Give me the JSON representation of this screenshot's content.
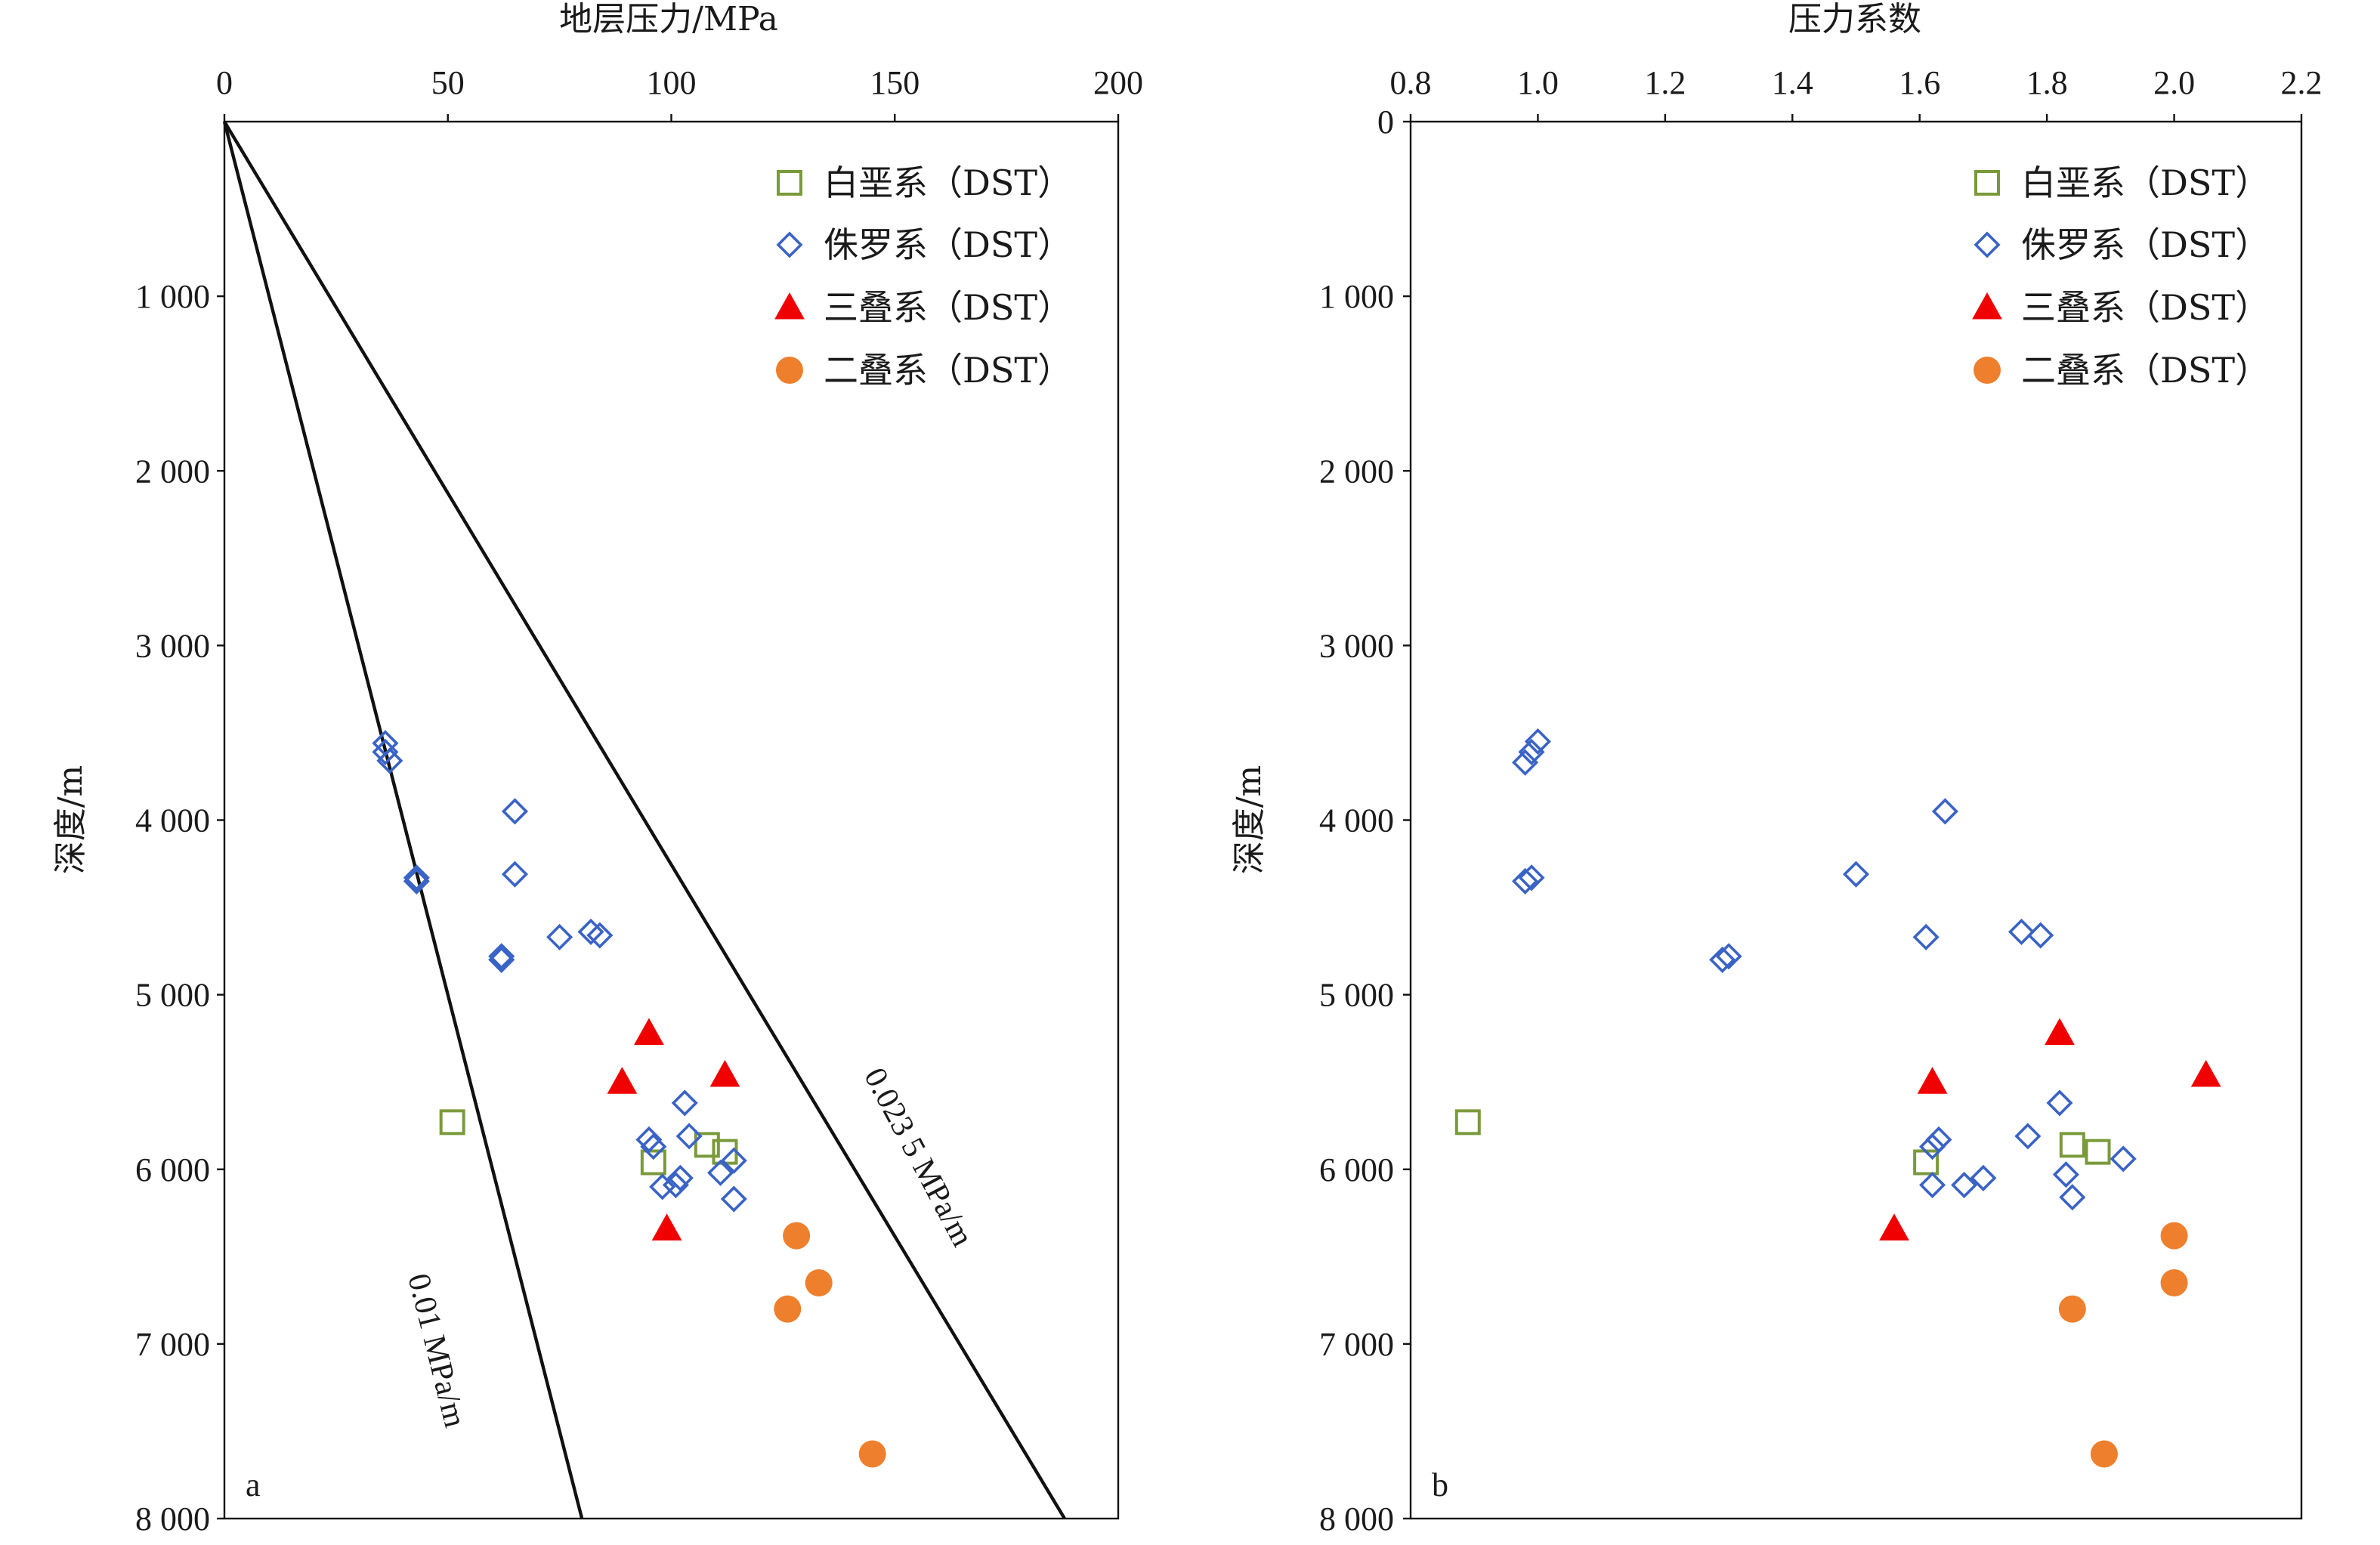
{
  "colors": {
    "cretaceous": "#7A9A3A",
    "jurassic": "#3A63C6",
    "triassic": "#F00000",
    "permian": "#EE7F2C",
    "axis": "#111111"
  },
  "chart_data": [
    {
      "type": "scatter",
      "panel_label": "a",
      "title": "地层压力/MPa",
      "xlabel": "地层压力/MPa",
      "ylabel": "深度/m",
      "xlim": [
        0,
        200
      ],
      "ylim": [
        0,
        8000
      ],
      "x_axis_position": "top",
      "y_inverted": true,
      "grid": false,
      "legend_position": "top-right",
      "x_ticks": [
        0,
        50,
        100,
        150,
        200
      ],
      "x_tick_labels": [
        "0",
        "50",
        "100",
        "150",
        "200"
      ],
      "y_ticks": [
        1000,
        2000,
        3000,
        4000,
        5000,
        6000,
        7000,
        8000
      ],
      "y_tick_labels": [
        "1 000",
        "2 000",
        "3 000",
        "4 000",
        "5 000",
        "6 000",
        "7 000",
        "8 000"
      ],
      "reference_lines": [
        {
          "label": "0.01 MPa/m",
          "gradient": 0.01,
          "x": [
            0,
            80
          ],
          "y": [
            0,
            8000
          ]
        },
        {
          "label": "0.023 5 MPa/m",
          "gradient": 0.0235,
          "x": [
            0,
            188
          ],
          "y": [
            0,
            8000
          ]
        }
      ],
      "series": [
        {
          "name": "白垩系（DST）",
          "marker": "square",
          "color": "#7A9A3A",
          "points": [
            [
              51,
              5730
            ],
            [
              96,
              5960
            ],
            [
              108,
              5860
            ],
            [
              112,
              5900
            ]
          ]
        },
        {
          "name": "侏罗系（DST）",
          "marker": "diamond",
          "color": "#3A63C6",
          "points": [
            [
              36,
              3560
            ],
            [
              36,
              3610
            ],
            [
              37,
              3660
            ],
            [
              43,
              4350
            ],
            [
              43,
              4330
            ],
            [
              62,
              4780
            ],
            [
              62,
              4800
            ],
            [
              65,
              3950
            ],
            [
              65,
              4310
            ],
            [
              75,
              4670
            ],
            [
              82,
              4640
            ],
            [
              84,
              4660
            ],
            [
              95,
              5830
            ],
            [
              96,
              5870
            ],
            [
              98,
              6100
            ],
            [
              101,
              6090
            ],
            [
              102,
              6050
            ],
            [
              103,
              5620
            ],
            [
              104,
              5810
            ],
            [
              111,
              6020
            ],
            [
              114,
              5950
            ],
            [
              114,
              6170
            ]
          ]
        },
        {
          "name": "三叠系（DST）",
          "marker": "triangle",
          "color": "#F00000",
          "points": [
            [
              95,
              5220
            ],
            [
              89,
              5500
            ],
            [
              112,
              5460
            ],
            [
              99,
              6340
            ]
          ]
        },
        {
          "name": "二叠系（DST）",
          "marker": "circle",
          "color": "#EE7F2C",
          "points": [
            [
              128,
              6380
            ],
            [
              133,
              6650
            ],
            [
              126,
              6800
            ],
            [
              145,
              7630
            ]
          ]
        }
      ]
    },
    {
      "type": "scatter",
      "panel_label": "b",
      "title": "压力系数",
      "xlabel": "压力系数",
      "ylabel": "深度/m",
      "xlim": [
        0.8,
        2.2
      ],
      "ylim": [
        0,
        8000
      ],
      "x_axis_position": "top",
      "y_inverted": true,
      "grid": false,
      "legend_position": "top-right",
      "x_ticks": [
        0.8,
        1.0,
        1.2,
        1.4,
        1.6,
        1.8,
        2.0,
        2.2
      ],
      "x_tick_labels": [
        "0.8",
        "1.0",
        "1.2",
        "1.4",
        "1.6",
        "1.8",
        "2.0",
        "2.2"
      ],
      "y_ticks": [
        0,
        1000,
        2000,
        3000,
        4000,
        5000,
        6000,
        7000,
        8000
      ],
      "y_tick_labels": [
        "0",
        "1 000",
        "2 000",
        "3 000",
        "4 000",
        "5 000",
        "6 000",
        "7 000",
        "8 000"
      ],
      "series": [
        {
          "name": "白垩系（DST）",
          "marker": "square",
          "color": "#7A9A3A",
          "points": [
            [
              0.89,
              5730
            ],
            [
              1.61,
              5960
            ],
            [
              1.84,
              5860
            ],
            [
              1.88,
              5900
            ]
          ]
        },
        {
          "name": "侏罗系（DST）",
          "marker": "diamond",
          "color": "#3A63C6",
          "points": [
            [
              1.0,
              3550
            ],
            [
              0.99,
              3610
            ],
            [
              0.98,
              3670
            ],
            [
              0.98,
              4350
            ],
            [
              0.99,
              4330
            ],
            [
              1.29,
              4800
            ],
            [
              1.3,
              4780
            ],
            [
              1.64,
              3950
            ],
            [
              1.5,
              4310
            ],
            [
              1.61,
              4670
            ],
            [
              1.76,
              4640
            ],
            [
              1.79,
              4660
            ],
            [
              1.62,
              5870
            ],
            [
              1.63,
              5830
            ],
            [
              1.62,
              6090
            ],
            [
              1.67,
              6090
            ],
            [
              1.7,
              6050
            ],
            [
              1.82,
              5620
            ],
            [
              1.77,
              5810
            ],
            [
              1.83,
              6030
            ],
            [
              1.92,
              5940
            ],
            [
              1.84,
              6160
            ]
          ]
        },
        {
          "name": "三叠系（DST）",
          "marker": "triangle",
          "color": "#F00000",
          "points": [
            [
              1.82,
              5220
            ],
            [
              1.62,
              5500
            ],
            [
              2.05,
              5460
            ],
            [
              1.56,
              6340
            ]
          ]
        },
        {
          "name": "二叠系（DST）",
          "marker": "circle",
          "color": "#EE7F2C",
          "points": [
            [
              2.0,
              6380
            ],
            [
              2.0,
              6650
            ],
            [
              1.84,
              6800
            ],
            [
              1.89,
              7630
            ]
          ]
        }
      ]
    }
  ]
}
